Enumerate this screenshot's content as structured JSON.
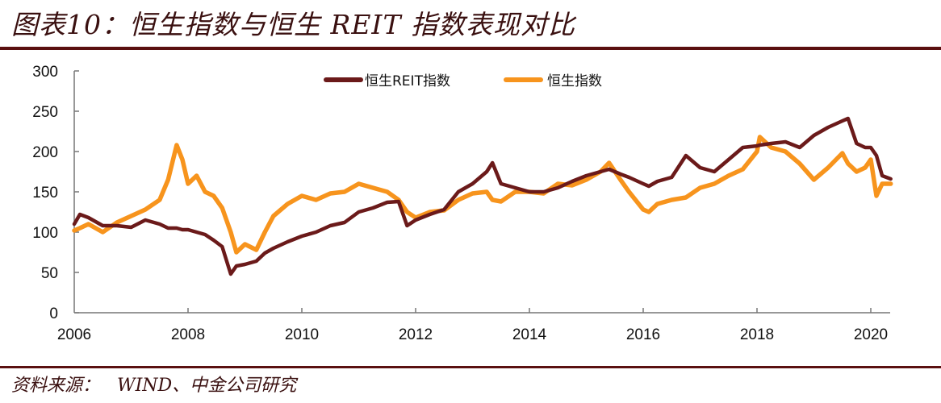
{
  "header": {
    "title": "图表10：恒生指数与恒生 REIT 指数表现对比"
  },
  "footer": {
    "source": "资料来源：   WIND、中金公司研究"
  },
  "colors": {
    "reit": "#6b1a1a",
    "hsi": "#f7941d",
    "axis": "#777777",
    "rule": "#5a1010"
  },
  "chart_data": {
    "type": "line",
    "title": "恒生指数与恒生 REIT 指数表现对比",
    "xlabel": "",
    "ylabel": "",
    "xlim": [
      2006,
      2020.35
    ],
    "ylim": [
      0,
      300
    ],
    "x_ticks": [
      "2006",
      "2008",
      "2010",
      "2012",
      "2014",
      "2016",
      "2018",
      "2020"
    ],
    "y_ticks": [
      "0",
      "50",
      "100",
      "150",
      "200",
      "250",
      "300"
    ],
    "grid": false,
    "legend_position": "top-center",
    "x": [
      2006.0,
      2006.1,
      2006.25,
      2006.5,
      2006.75,
      2007.0,
      2007.25,
      2007.5,
      2007.65,
      2007.8,
      2007.9,
      2008.0,
      2008.15,
      2008.3,
      2008.45,
      2008.6,
      2008.75,
      2008.85,
      2009.0,
      2009.2,
      2009.35,
      2009.5,
      2009.75,
      2010.0,
      2010.25,
      2010.5,
      2010.75,
      2011.0,
      2011.25,
      2011.5,
      2011.7,
      2011.85,
      2012.0,
      2012.25,
      2012.5,
      2012.75,
      2013.0,
      2013.25,
      2013.35,
      2013.5,
      2013.75,
      2014.0,
      2014.25,
      2014.5,
      2014.75,
      2015.0,
      2015.25,
      2015.4,
      2015.6,
      2015.75,
      2016.0,
      2016.1,
      2016.25,
      2016.5,
      2016.75,
      2017.0,
      2017.25,
      2017.5,
      2017.75,
      2018.0,
      2018.05,
      2018.25,
      2018.5,
      2018.75,
      2019.0,
      2019.25,
      2019.5,
      2019.6,
      2019.75,
      2019.9,
      2020.0,
      2020.1,
      2020.2,
      2020.35
    ],
    "series": [
      {
        "name": "恒生REIT指数",
        "color": "#6b1a1a",
        "values": [
          110,
          122,
          118,
          108,
          108,
          106,
          115,
          110,
          105,
          105,
          103,
          103,
          100,
          97,
          90,
          82,
          48,
          58,
          60,
          64,
          74,
          80,
          88,
          95,
          100,
          108,
          112,
          125,
          130,
          137,
          138,
          108,
          115,
          122,
          128,
          150,
          160,
          175,
          186,
          160,
          155,
          150,
          150,
          155,
          163,
          170,
          175,
          178,
          172,
          168,
          160,
          157,
          163,
          168,
          195,
          180,
          175,
          190,
          205,
          207,
          208,
          210,
          212,
          205,
          220,
          230,
          238,
          241,
          210,
          205,
          205,
          195,
          170,
          166
        ]
      },
      {
        "name": "恒生指数",
        "color": "#f7941d",
        "values": [
          102,
          105,
          110,
          100,
          112,
          120,
          128,
          140,
          165,
          208,
          190,
          160,
          170,
          150,
          145,
          130,
          100,
          75,
          85,
          78,
          100,
          120,
          135,
          145,
          140,
          148,
          150,
          160,
          155,
          150,
          140,
          125,
          118,
          125,
          127,
          140,
          148,
          150,
          140,
          138,
          150,
          150,
          148,
          160,
          158,
          165,
          175,
          186,
          165,
          150,
          128,
          125,
          135,
          140,
          143,
          155,
          160,
          170,
          178,
          200,
          218,
          205,
          200,
          185,
          165,
          180,
          198,
          185,
          175,
          180,
          190,
          145,
          160,
          160
        ]
      }
    ]
  },
  "legend": {
    "items": [
      {
        "label": "恒生REIT指数",
        "color": "#6b1a1a"
      },
      {
        "label": "恒生指数",
        "color": "#f7941d"
      }
    ]
  }
}
